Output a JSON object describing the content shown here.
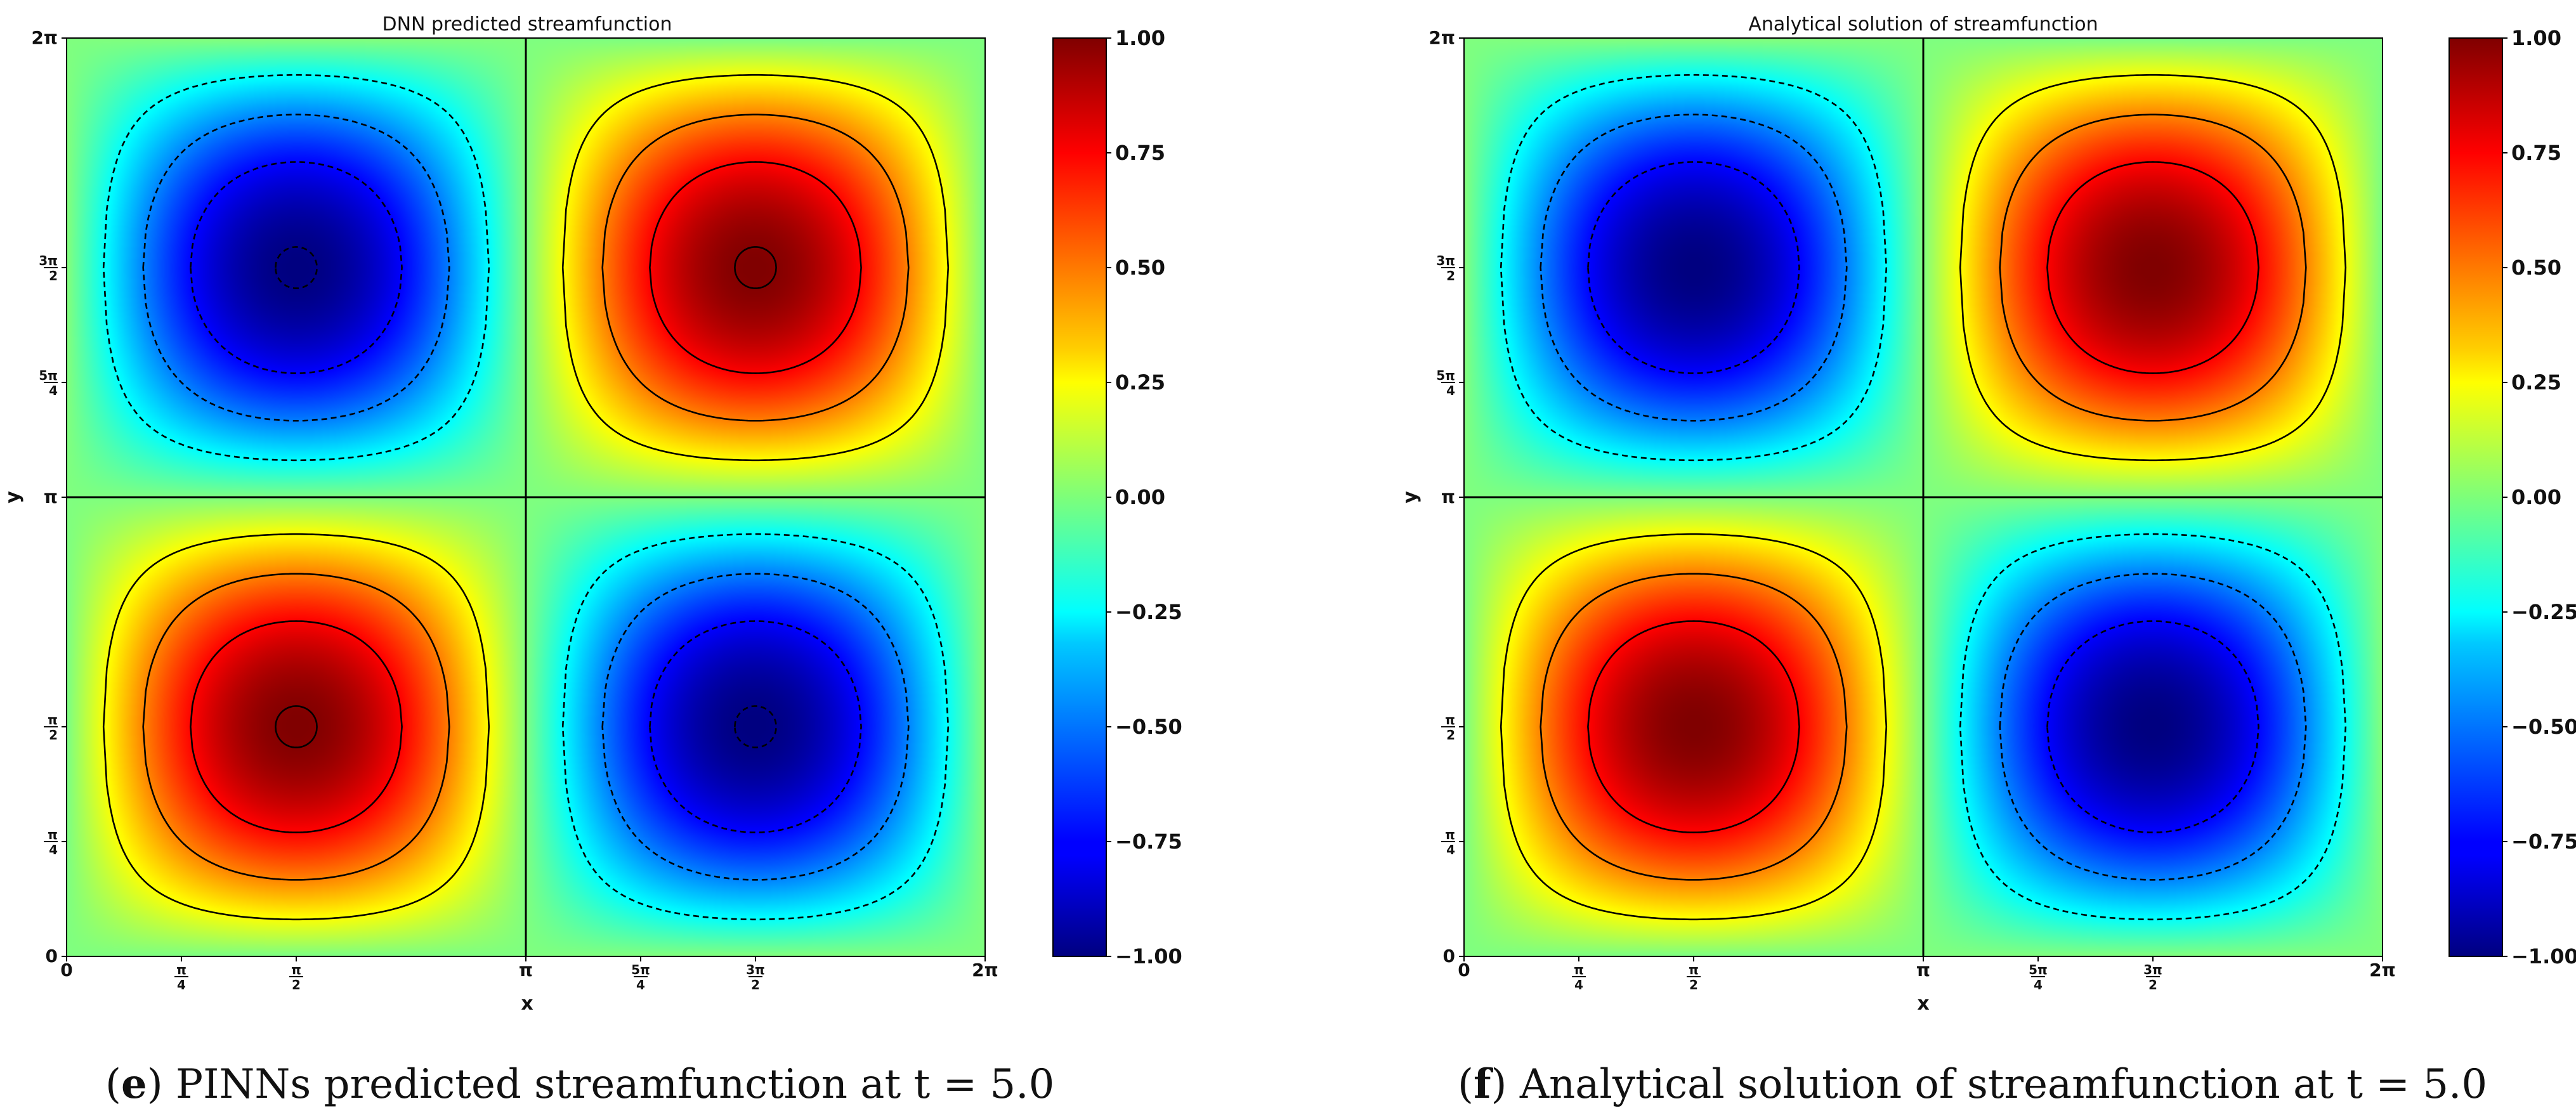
{
  "figure": {
    "panels": [
      {
        "title": "DNN predicted streamfunction",
        "xlabel": "x",
        "ylabel": "y",
        "caption_letter": "e",
        "caption_text": "PINNs predicted streamfunction at t = 5.0"
      },
      {
        "title": "Analytical solution of streamfunction",
        "xlabel": "x",
        "ylabel": "y",
        "caption_letter": "f",
        "caption_text": "Analytical solution of streamfunction at t = 5.0"
      }
    ]
  },
  "chart_data": [
    {
      "type": "heatmap",
      "title": "DNN predicted streamfunction",
      "xlabel": "x",
      "ylabel": "y",
      "field": "psi(x,y) = sin(x) * sin(y)",
      "xlim": [
        0,
        6.2832
      ],
      "ylim": [
        0,
        6.2832
      ],
      "xticks": [
        {
          "value": 0,
          "label": "0"
        },
        {
          "value": 0.7854,
          "label": "π/4"
        },
        {
          "value": 1.5708,
          "label": "π/2"
        },
        {
          "value": 3.1416,
          "label": "π"
        },
        {
          "value": 3.927,
          "label": "5π/4"
        },
        {
          "value": 4.7124,
          "label": "3π/2"
        },
        {
          "value": 6.2832,
          "label": "2π"
        }
      ],
      "yticks": [
        {
          "value": 0,
          "label": "0"
        },
        {
          "value": 0.7854,
          "label": "π/4"
        },
        {
          "value": 1.5708,
          "label": "π/2"
        },
        {
          "value": 3.1416,
          "label": "π"
        },
        {
          "value": 3.927,
          "label": "5π/4"
        },
        {
          "value": 4.7124,
          "label": "3π/2"
        },
        {
          "value": 6.2832,
          "label": "2π"
        }
      ],
      "contour_levels": [
        -0.99,
        -0.75,
        -0.5,
        -0.25,
        0,
        0.25,
        0.5,
        0.75,
        0.99
      ],
      "colormap": "jet",
      "colorbar": {
        "min": -1.0,
        "max": 1.0,
        "ticks": [
          "1.00",
          "0.75",
          "0.50",
          "0.25",
          "0.00",
          "−0.25",
          "−0.50",
          "−0.75",
          "−1.00"
        ]
      }
    },
    {
      "type": "heatmap",
      "title": "Analytical solution of streamfunction",
      "xlabel": "x",
      "ylabel": "y",
      "field": "psi(x,y) = sin(x) * sin(y)",
      "xlim": [
        0,
        6.2832
      ],
      "ylim": [
        0,
        6.2832
      ],
      "xticks": [
        {
          "value": 0,
          "label": "0"
        },
        {
          "value": 0.7854,
          "label": "π/4"
        },
        {
          "value": 1.5708,
          "label": "π/2"
        },
        {
          "value": 3.1416,
          "label": "π"
        },
        {
          "value": 3.927,
          "label": "5π/4"
        },
        {
          "value": 4.7124,
          "label": "3π/2"
        },
        {
          "value": 6.2832,
          "label": "2π"
        }
      ],
      "yticks": [
        {
          "value": 0,
          "label": "0"
        },
        {
          "value": 0.7854,
          "label": "π/4"
        },
        {
          "value": 1.5708,
          "label": "π/2"
        },
        {
          "value": 3.1416,
          "label": "π"
        },
        {
          "value": 3.927,
          "label": "5π/4"
        },
        {
          "value": 4.7124,
          "label": "3π/2"
        },
        {
          "value": 6.2832,
          "label": "2π"
        }
      ],
      "contour_levels": [
        -0.75,
        -0.5,
        -0.25,
        0,
        0.25,
        0.5,
        0.75
      ],
      "colormap": "jet",
      "colorbar": {
        "min": -1.0,
        "max": 1.0,
        "ticks": [
          "1.00",
          "0.75",
          "0.50",
          "0.25",
          "0.00",
          "−0.25",
          "−0.50",
          "−0.75",
          "−1.00"
        ]
      }
    }
  ]
}
